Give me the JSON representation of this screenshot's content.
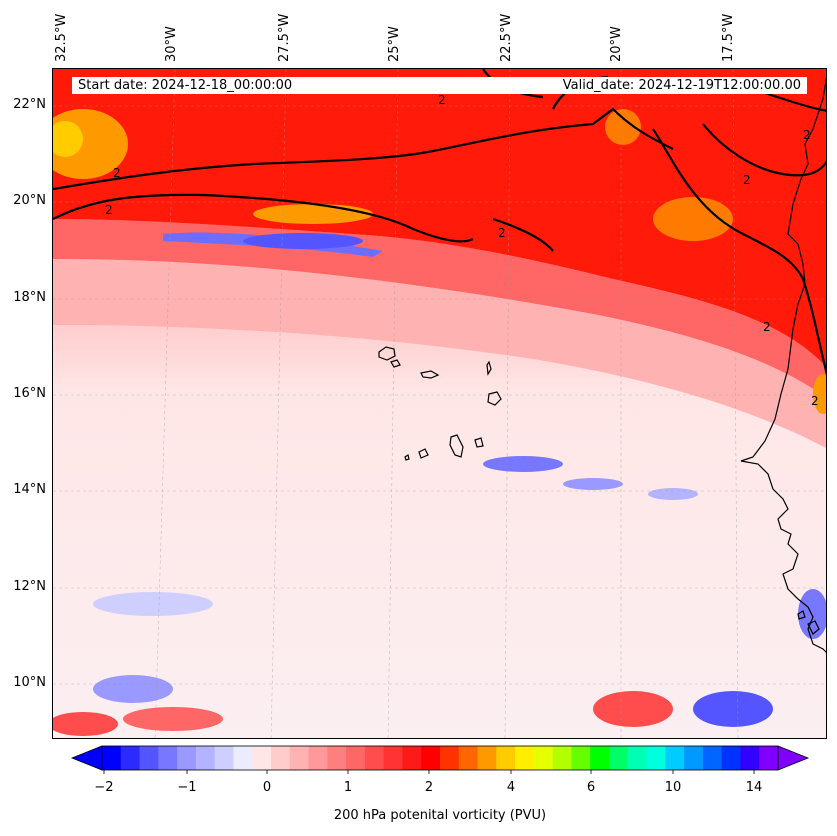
{
  "map": {
    "lon_labels": [
      "32.5°W",
      "30°W",
      "27.5°W",
      "25°W",
      "22.5°W",
      "20°W",
      "17.5°W"
    ],
    "lat_labels": [
      "22°N",
      "20°N",
      "18°N",
      "16°N",
      "14°N",
      "12°N",
      "10°N"
    ],
    "contour_level_label": "2",
    "start_date": "Start date: 2024-12-18_00:00:00",
    "valid_date": "Valid_date: 2024-12-19T12:00:00.00"
  },
  "colorbar": {
    "ticks": [
      "−2",
      "−1",
      "0",
      "1",
      "2",
      "4",
      "6",
      "10",
      "14"
    ],
    "label": "200 hPa potenital vorticity (PVU)",
    "colors": [
      "#0000ff",
      "#2b2bff",
      "#5555ff",
      "#7777ff",
      "#9999ff",
      "#b3b3ff",
      "#cfcfff",
      "#ececff",
      "#ffe6e6",
      "#ffcccc",
      "#ffb2b2",
      "#ff9999",
      "#ff7f7f",
      "#ff6666",
      "#ff4c4c",
      "#ff3333",
      "#ff1a1a",
      "#ff0000",
      "#ff3300",
      "#ff6600",
      "#ff9900",
      "#ffcc00",
      "#ffee00",
      "#e6ff00",
      "#b3ff00",
      "#66ff00",
      "#00ff00",
      "#00ff66",
      "#00ffb3",
      "#00ffdd",
      "#00ccff",
      "#0099ff",
      "#0066ff",
      "#0033ff",
      "#3300ff",
      "#8000ff"
    ]
  },
  "coastline_color": "#000000"
}
